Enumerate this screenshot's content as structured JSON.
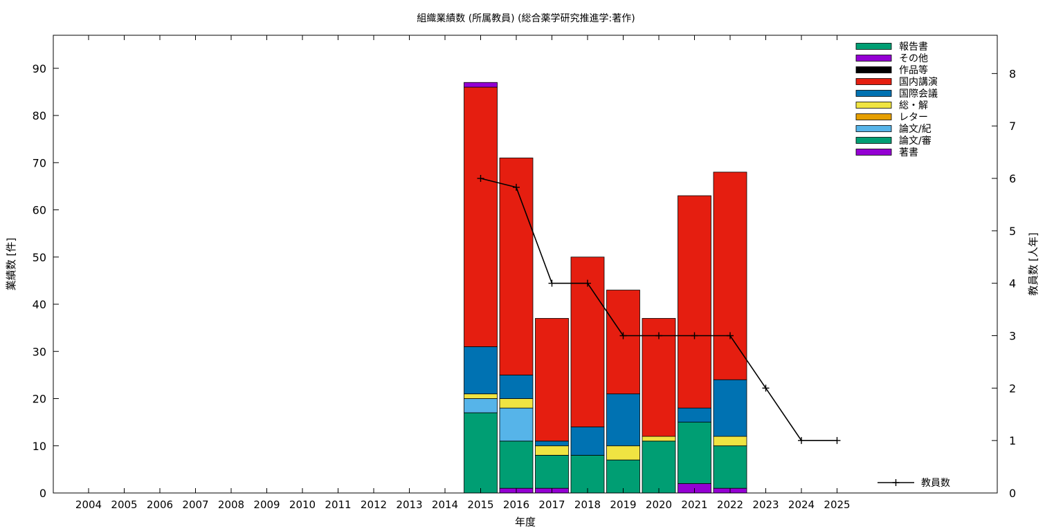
{
  "chart_data": {
    "type": "bar",
    "stacked": true,
    "title": "組織業績数 (所属教員) (総合薬学研究推進学:著作)",
    "xlabel": "年度",
    "ylabel": "業績数 [件]",
    "y2label": "教員数 [人年]",
    "categories": [
      "2004",
      "2005",
      "2006",
      "2007",
      "2008",
      "2009",
      "2010",
      "2011",
      "2012",
      "2013",
      "2014",
      "2015",
      "2016",
      "2017",
      "2018",
      "2019",
      "2020",
      "2021",
      "2022",
      "2023",
      "2024",
      "2025"
    ],
    "ylim": [
      0,
      97
    ],
    "y2lim": [
      0,
      8.73
    ],
    "yticks": [
      0,
      10,
      20,
      30,
      40,
      50,
      60,
      70,
      80,
      90
    ],
    "y2ticks": [
      0,
      1,
      2,
      3,
      4,
      5,
      6,
      7,
      8
    ],
    "grid": false,
    "legend_position": "top-right",
    "series": [
      {
        "name": "著書",
        "color": "#9400d3",
        "values": [
          0,
          0,
          0,
          0,
          0,
          0,
          0,
          0,
          0,
          0,
          0,
          0,
          1,
          1,
          0,
          0,
          0,
          2,
          1,
          0,
          0,
          0
        ]
      },
      {
        "name": "論文/審",
        "color": "#009e73",
        "values": [
          0,
          0,
          0,
          0,
          0,
          0,
          0,
          0,
          0,
          0,
          0,
          17,
          10,
          7,
          8,
          7,
          11,
          13,
          9,
          0,
          0,
          0
        ]
      },
      {
        "name": "論文/紀",
        "color": "#56b4e9",
        "values": [
          0,
          0,
          0,
          0,
          0,
          0,
          0,
          0,
          0,
          0,
          0,
          3,
          7,
          0,
          0,
          0,
          0,
          0,
          0,
          0,
          0,
          0
        ]
      },
      {
        "name": "レター",
        "color": "#e69f00",
        "values": [
          0,
          0,
          0,
          0,
          0,
          0,
          0,
          0,
          0,
          0,
          0,
          0,
          0,
          0,
          0,
          0,
          0,
          0,
          0,
          0,
          0,
          0
        ]
      },
      {
        "name": "総・解",
        "color": "#f0e442",
        "values": [
          0,
          0,
          0,
          0,
          0,
          0,
          0,
          0,
          0,
          0,
          0,
          1,
          2,
          2,
          0,
          3,
          1,
          0,
          2,
          0,
          0,
          0
        ]
      },
      {
        "name": "国際会議",
        "color": "#0072b2",
        "values": [
          0,
          0,
          0,
          0,
          0,
          0,
          0,
          0,
          0,
          0,
          0,
          10,
          5,
          1,
          6,
          11,
          0,
          3,
          12,
          0,
          0,
          0
        ]
      },
      {
        "name": "国内講演",
        "color": "#e51e10",
        "values": [
          0,
          0,
          0,
          0,
          0,
          0,
          0,
          0,
          0,
          0,
          0,
          55,
          46,
          26,
          36,
          22,
          25,
          45,
          44,
          0,
          0,
          0
        ]
      },
      {
        "name": "作品等",
        "color": "#000000",
        "values": [
          0,
          0,
          0,
          0,
          0,
          0,
          0,
          0,
          0,
          0,
          0,
          0,
          0,
          0,
          0,
          0,
          0,
          0,
          0,
          0,
          0,
          0
        ]
      },
      {
        "name": "その他",
        "color": "#9400d3",
        "values": [
          0,
          0,
          0,
          0,
          0,
          0,
          0,
          0,
          0,
          0,
          0,
          1,
          0,
          0,
          0,
          0,
          0,
          0,
          0,
          0,
          0,
          0
        ]
      },
      {
        "name": "報告書",
        "color": "#009e73",
        "values": [
          0,
          0,
          0,
          0,
          0,
          0,
          0,
          0,
          0,
          0,
          0,
          0,
          0,
          0,
          0,
          0,
          0,
          0,
          0,
          0,
          0,
          0
        ]
      }
    ],
    "line_series": {
      "name": "教員数",
      "color": "#000000",
      "axis": "right",
      "values": [
        null,
        null,
        null,
        null,
        null,
        null,
        null,
        null,
        null,
        null,
        null,
        6,
        5.83,
        4,
        4,
        3,
        3,
        3,
        3,
        2,
        1,
        1
      ]
    }
  }
}
